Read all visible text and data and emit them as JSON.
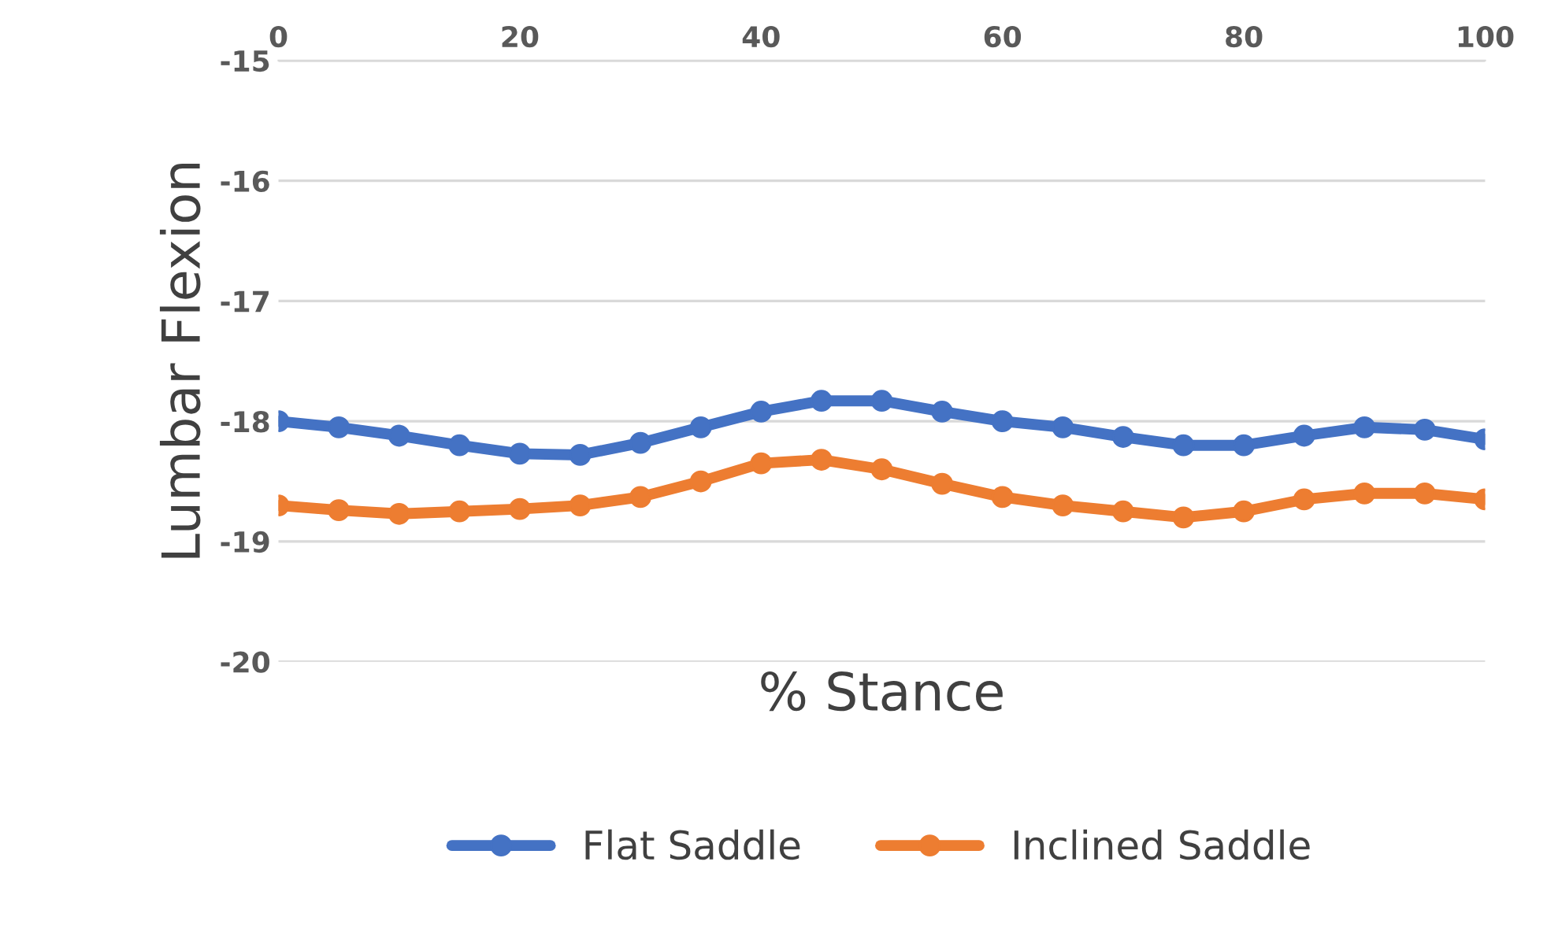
{
  "chart_data": {
    "type": "line",
    "xlabel": "% Stance",
    "ylabel": "Lumbar Flexion",
    "x": [
      0,
      5,
      10,
      15,
      20,
      25,
      30,
      35,
      40,
      45,
      50,
      55,
      60,
      65,
      70,
      75,
      80,
      85,
      90,
      95,
      100
    ],
    "series": [
      {
        "name": "Flat Saddle",
        "color": "#4472c4",
        "values": [
          -18.0,
          -18.05,
          -18.12,
          -18.2,
          -18.27,
          -18.28,
          -18.18,
          -18.05,
          -17.92,
          -17.83,
          -17.83,
          -17.92,
          -18.0,
          -18.05,
          -18.13,
          -18.2,
          -18.2,
          -18.12,
          -18.05,
          -18.07,
          -18.15
        ]
      },
      {
        "name": "Inclined Saddle",
        "color": "#ed7d31",
        "values": [
          -18.7,
          -18.74,
          -18.77,
          -18.75,
          -18.73,
          -18.7,
          -18.63,
          -18.5,
          -18.35,
          -18.32,
          -18.4,
          -18.52,
          -18.63,
          -18.7,
          -18.75,
          -18.8,
          -18.75,
          -18.65,
          -18.6,
          -18.6,
          -18.65
        ]
      }
    ],
    "xlim": [
      0,
      100
    ],
    "xticks": [
      0,
      20,
      40,
      60,
      80,
      100
    ],
    "ylim": [
      -20,
      -15
    ],
    "yticks": [
      -20,
      -19,
      -18,
      -17,
      -16,
      -15
    ],
    "grid": "y",
    "legend": "bottom",
    "marker": "circle",
    "line_style": "solid"
  }
}
